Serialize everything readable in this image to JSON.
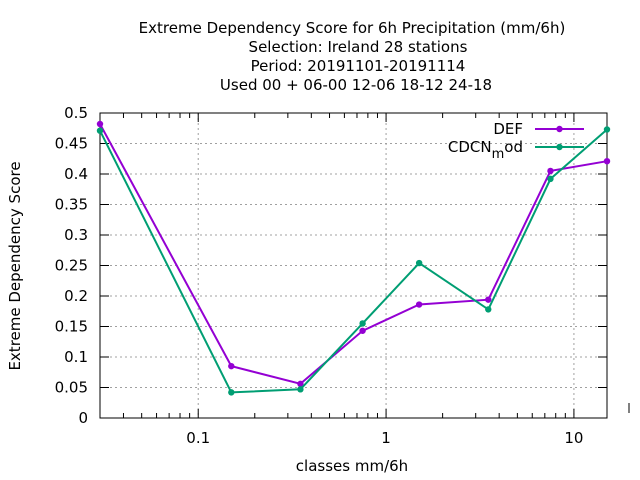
{
  "title_lines": [
    "Extreme Dependency Score  for 6h Precipitation (mm/6h)",
    "Selection: Ireland     28 stations",
    "Period: 20191101-20191114",
    "Used  00 + 06-00 12-06 18-12 24-18"
  ],
  "chart_data": {
    "type": "line",
    "title": "Extreme Dependency Score  for 6h Precipitation (mm/6h)",
    "xlabel": "classes mm/6h",
    "ylabel": "Extreme Dependency Score",
    "xscale": "log",
    "xlim": [
      0.03,
      15
    ],
    "ylim": [
      0,
      0.5
    ],
    "grid": true,
    "legend_position": "top-right",
    "x_ticks": [
      {
        "value": 0.1,
        "label": "0.1"
      },
      {
        "value": 1,
        "label": "1"
      },
      {
        "value": 10,
        "label": "10"
      }
    ],
    "y_ticks": [
      {
        "value": 0,
        "label": "0"
      },
      {
        "value": 0.05,
        "label": "0.05"
      },
      {
        "value": 0.1,
        "label": "0.1"
      },
      {
        "value": 0.15,
        "label": "0.15"
      },
      {
        "value": 0.2,
        "label": "0.2"
      },
      {
        "value": 0.25,
        "label": "0.25"
      },
      {
        "value": 0.3,
        "label": "0.3"
      },
      {
        "value": 0.35,
        "label": "0.35"
      },
      {
        "value": 0.4,
        "label": "0.4"
      },
      {
        "value": 0.45,
        "label": "0.45"
      },
      {
        "value": 0.5,
        "label": "0.5"
      }
    ],
    "x": [
      0.03,
      0.15,
      0.35,
      0.75,
      1.5,
      3.5,
      7.5,
      15
    ],
    "series": [
      {
        "name": "DEF",
        "legend_parts": [
          "DEF"
        ],
        "color": "#9400d3",
        "values": [
          0.482,
          0.085,
          0.056,
          0.143,
          0.186,
          0.194,
          0.405,
          0.421
        ]
      },
      {
        "name": "CDCN_mod",
        "legend_parts": [
          "CDCN",
          "m",
          "od"
        ],
        "color": "#009e73",
        "values": [
          0.471,
          0.042,
          0.047,
          0.155,
          0.254,
          0.178,
          0.392,
          0.473
        ]
      }
    ]
  }
}
